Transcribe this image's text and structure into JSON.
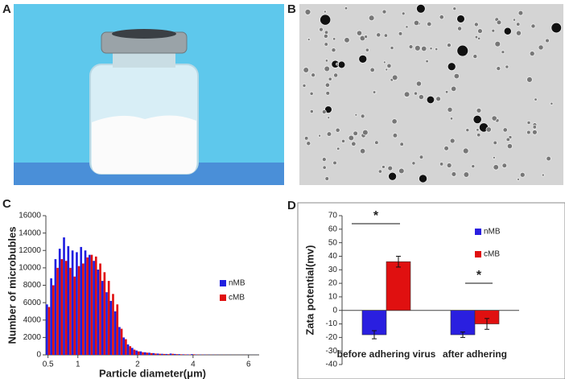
{
  "panel_labels": [
    "A",
    "B",
    "C",
    "D"
  ],
  "chart_data": [
    {
      "type": "bar",
      "ylabel": "Number of microbubles",
      "xlabel": "Particle diameter(μm)",
      "categories": [
        "0.5",
        null,
        null,
        null,
        null,
        null,
        null,
        "1",
        null,
        null,
        null,
        null,
        null,
        null,
        null,
        null,
        null,
        null,
        null,
        null,
        null,
        "2",
        null,
        null,
        null,
        null,
        null,
        null,
        null,
        null,
        null,
        null,
        null,
        null,
        "4",
        null,
        null,
        null,
        null,
        null,
        null,
        null,
        null,
        null,
        null,
        null,
        null,
        "6",
        null,
        null
      ],
      "series": [
        {
          "name": "nMB",
          "color": "#1f1fe0",
          "values": [
            5800,
            8800,
            11000,
            12200,
            13500,
            12500,
            12000,
            11800,
            12400,
            12000,
            11500,
            10800,
            9800,
            8500,
            7200,
            6200,
            5000,
            3200,
            2000,
            1200,
            800,
            500,
            400,
            300,
            250,
            200,
            150,
            120,
            100,
            150,
            100,
            80,
            60,
            50,
            80,
            40,
            30,
            30,
            20,
            20,
            15,
            10,
            10,
            10,
            5,
            5,
            5,
            5,
            5,
            5
          ]
        },
        {
          "name": "cMB",
          "color": "#e01010",
          "values": [
            5500,
            8000,
            10000,
            11000,
            10800,
            10000,
            9000,
            10200,
            10500,
            11200,
            11500,
            11300,
            10500,
            9500,
            8500,
            7000,
            5800,
            3000,
            1800,
            1000,
            600,
            400,
            300,
            250,
            200,
            150,
            120,
            100,
            80,
            120,
            80,
            60,
            50,
            40,
            60,
            30,
            25,
            20,
            15,
            15,
            10,
            10,
            5,
            5,
            5,
            5,
            5,
            0,
            0,
            0
          ]
        }
      ],
      "ylim": [
        0,
        16000
      ],
      "yticks": [
        0,
        2000,
        4000,
        6000,
        8000,
        10000,
        12000,
        14000,
        16000
      ]
    },
    {
      "type": "bar",
      "ylabel": "Zata potential(mv)",
      "categories": [
        "before adhering virus",
        "after adhering"
      ],
      "series": [
        {
          "name": "nMB",
          "color": "#2a1fe0",
          "values": [
            -18,
            -18
          ],
          "errors": [
            3,
            2
          ]
        },
        {
          "name": "cMB",
          "color": "#e01010",
          "values": [
            36,
            -10
          ],
          "errors": [
            4,
            4
          ]
        }
      ],
      "annotations": [
        "*",
        "*"
      ],
      "ylim": [
        -40,
        70
      ],
      "yticks": [
        -40,
        -30,
        -20,
        -10,
        0,
        10,
        20,
        30,
        40,
        50,
        60,
        70
      ]
    }
  ]
}
